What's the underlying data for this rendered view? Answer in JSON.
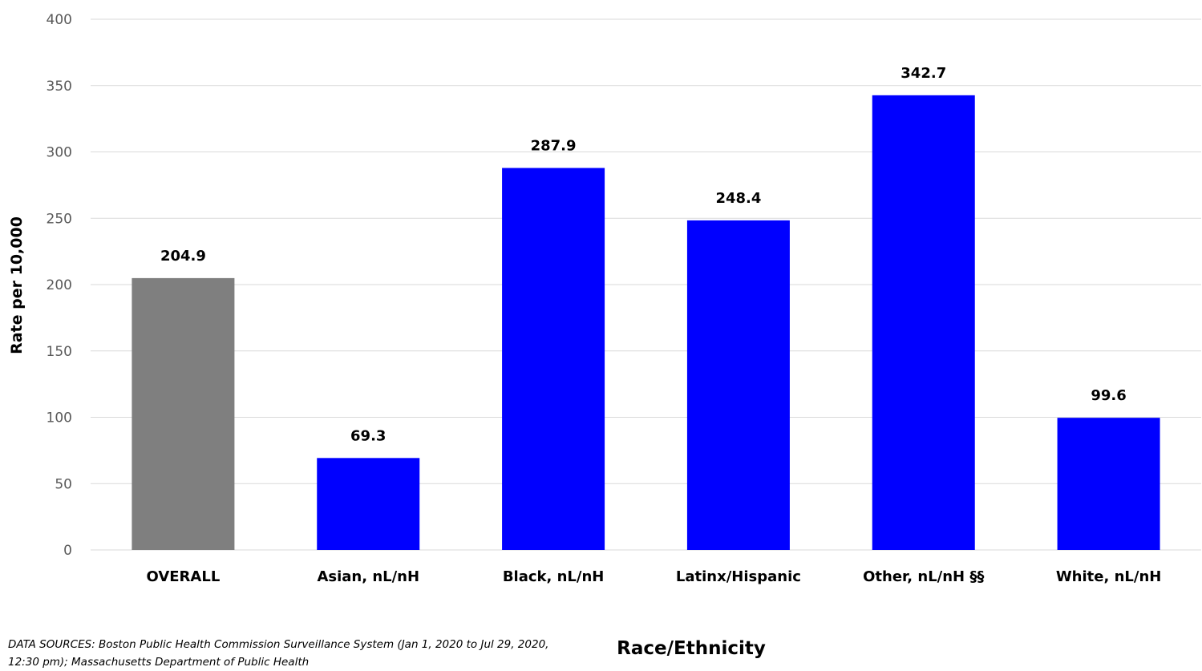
{
  "chart_data": {
    "type": "bar",
    "categories": [
      "OVERALL",
      "Asian, nL/nH",
      "Black, nL/nH",
      "Latinx/Hispanic",
      "Other, nL/nH §§",
      "White, nL/nH"
    ],
    "values": [
      204.9,
      69.3,
      287.9,
      248.4,
      342.7,
      99.6
    ],
    "value_labels": [
      "204.9",
      "69.3",
      "287.9",
      "248.4",
      "342.7",
      "99.6"
    ],
    "bar_colors": [
      "#7f7f7f",
      "#0000ff",
      "#0000ff",
      "#0000ff",
      "#0000ff",
      "#0000ff"
    ],
    "title": "",
    "xlabel": "Race/Ethnicity",
    "ylabel": "Rate per 10,000",
    "ylim": [
      0,
      400
    ],
    "yticks": [
      0,
      50,
      100,
      150,
      200,
      250,
      300,
      350,
      400
    ],
    "grid": true,
    "legend": "none"
  },
  "footnote": {
    "source_text": "DATA SOURCES: Boston Public Health Commission Surveillance System (Jan 1, 2020 to Jul 29, 2020, 12:30 pm); Massachusetts Department of Public Health"
  },
  "colors": {
    "gridline": "#d9d9d9",
    "tick_text": "#595959"
  }
}
